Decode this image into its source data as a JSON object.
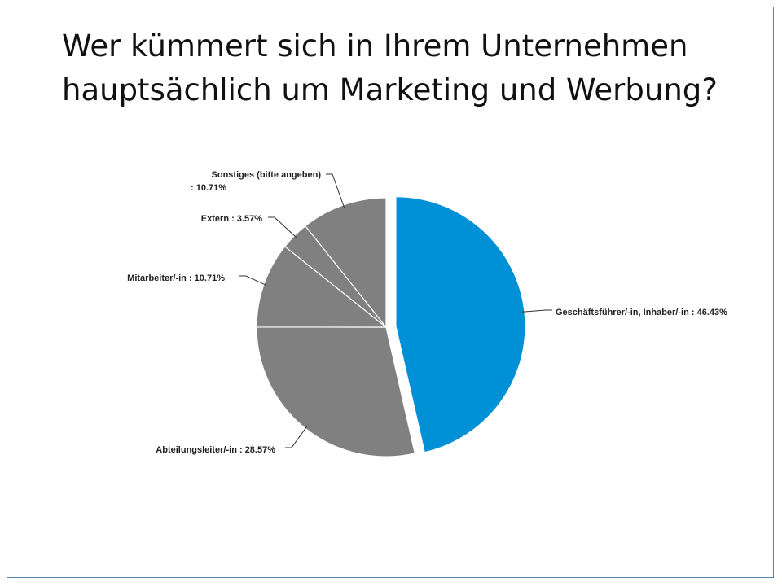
{
  "slide": {
    "title": "Wer kümmert sich in Ihrem Unternehmen hauptsächlich um Marketing und Werbung?"
  },
  "chart_data": {
    "type": "pie",
    "title": "",
    "slices": [
      {
        "label_lines": [
          "Geschäftsführer/-in, Inhaber/-in : 46.43%"
        ],
        "value": 46.43,
        "color": "#0090d6",
        "exploded": true
      },
      {
        "label_lines": [
          "Abteilungsleiter/-in : 28.57%"
        ],
        "value": 28.57,
        "color": "#808080",
        "exploded": false
      },
      {
        "label_lines": [
          "Mitarbeiter/-in : 10.71%"
        ],
        "value": 10.71,
        "color": "#808080",
        "exploded": false
      },
      {
        "label_lines": [
          "Extern : 3.57%"
        ],
        "value": 3.57,
        "color": "#808080",
        "exploded": false
      },
      {
        "label_lines": [
          "Sonstiges (bitte angeben)",
          " : 10.71%"
        ],
        "value": 10.71,
        "color": "#808080",
        "exploded": false
      }
    ],
    "start_angle_deg": 0,
    "direction": "clockwise",
    "slice_border_color": "#ffffff",
    "leader_color": "#333333"
  }
}
